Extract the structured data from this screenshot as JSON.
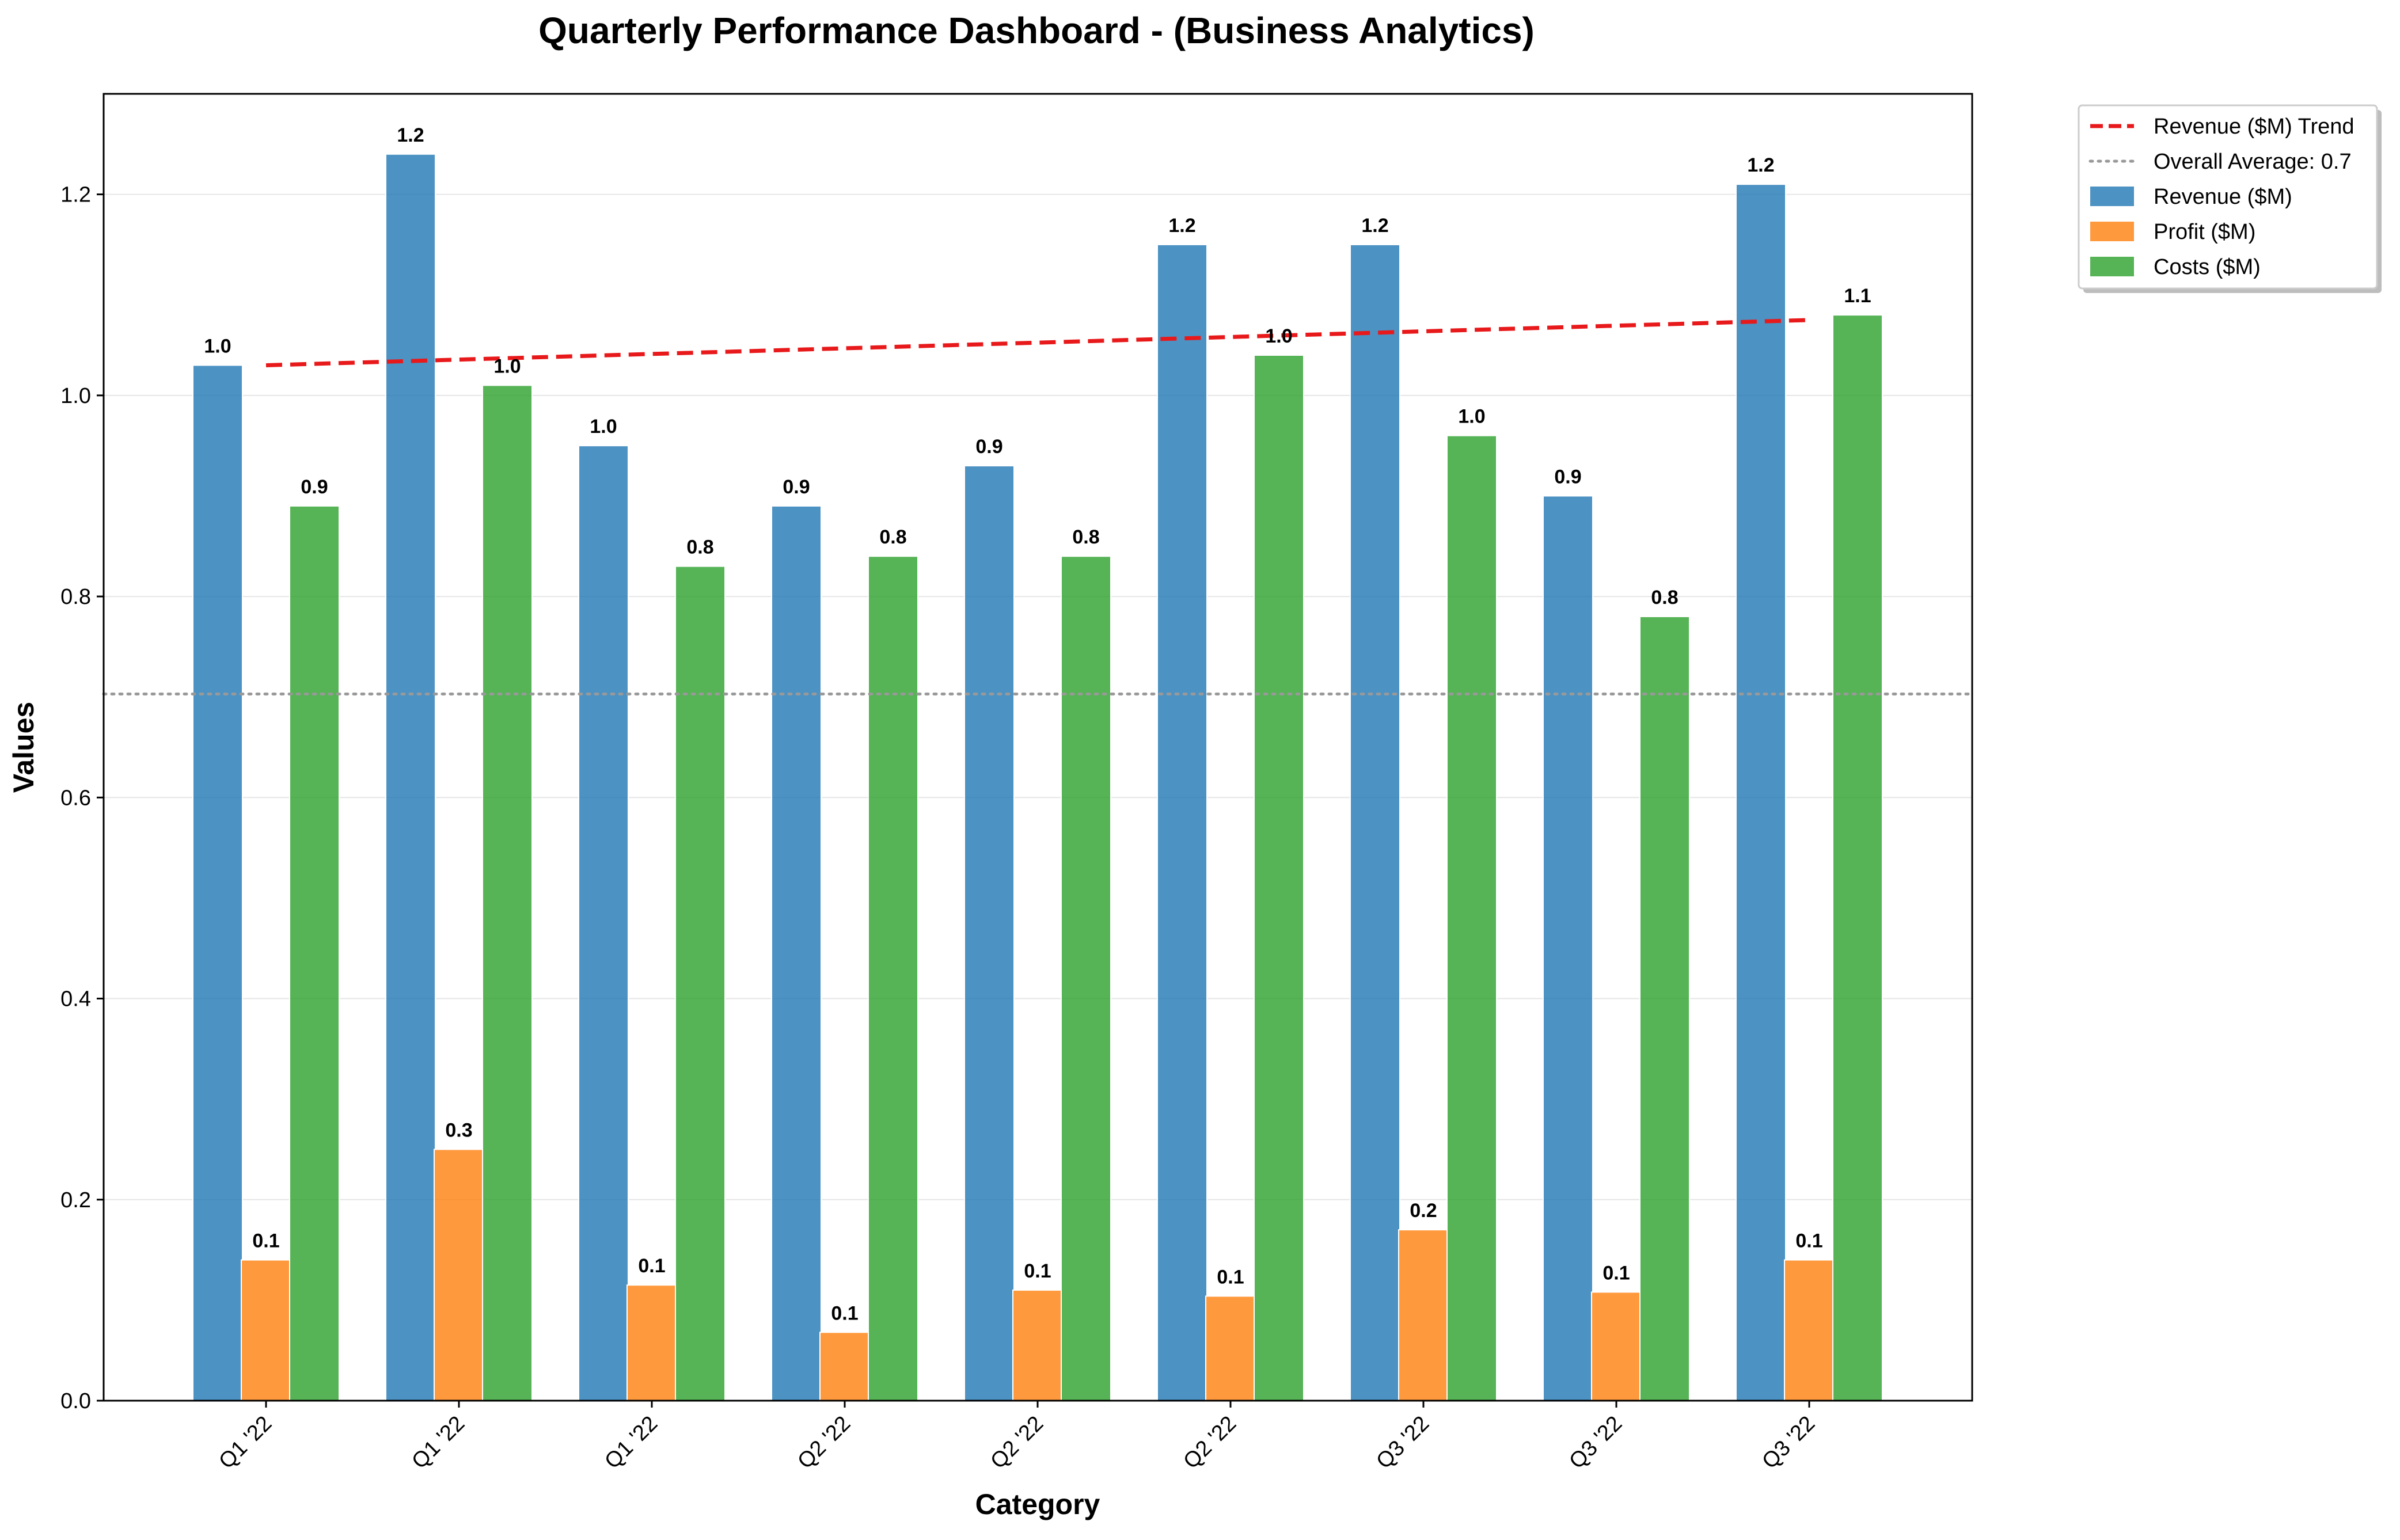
{
  "chart_data": {
    "type": "bar",
    "title": "Quarterly Performance Dashboard - (Business Analytics)",
    "xlabel": "Category",
    "ylabel": "Values",
    "categories": [
      "Q1 '22",
      "Q1 '22",
      "Q1 '22",
      "Q2 '22",
      "Q2 '22",
      "Q2 '22",
      "Q3 '22",
      "Q3 '22",
      "Q3 '22"
    ],
    "series": [
      {
        "name": "Revenue ($M)",
        "color": "#1f77b4",
        "values": [
          1.03,
          1.24,
          0.95,
          0.89,
          0.93,
          1.15,
          1.15,
          0.9,
          1.21
        ],
        "labels": [
          "1.0",
          "1.2",
          "1.0",
          "0.9",
          "0.9",
          "1.2",
          "1.2",
          "0.9",
          "1.2"
        ]
      },
      {
        "name": "Profit ($M)",
        "color": "#ff7f0e",
        "values": [
          0.14,
          0.25,
          0.115,
          0.068,
          0.11,
          0.104,
          0.17,
          0.108,
          0.14
        ],
        "labels": [
          "0.1",
          "0.3",
          "0.1",
          "0.1",
          "0.1",
          "0.1",
          "0.2",
          "0.1",
          "0.1"
        ]
      },
      {
        "name": "Costs ($M)",
        "color": "#2ca02c",
        "values": [
          0.89,
          1.01,
          0.83,
          0.84,
          0.84,
          1.04,
          0.96,
          0.78,
          1.08
        ],
        "labels": [
          "0.9",
          "1.0",
          "0.8",
          "0.8",
          "0.8",
          "1.0",
          "1.0",
          "0.8",
          "1.1"
        ]
      }
    ],
    "trend": {
      "name": "Revenue ($M) Trend",
      "color": "#e8191b",
      "start": 1.03,
      "end": 1.075
    },
    "average": {
      "name": "Overall Average: 0.7",
      "value": 0.703,
      "color": "#999999"
    },
    "ylim": [
      0,
      1.3
    ],
    "yticks": [
      "0.0",
      "0.2",
      "0.4",
      "0.6",
      "0.8",
      "1.0",
      "1.2"
    ],
    "yticks_values": [
      0,
      0.2,
      0.4,
      0.6,
      0.8,
      1.0,
      1.2
    ],
    "grid": "y",
    "legend_position": "top-right"
  }
}
